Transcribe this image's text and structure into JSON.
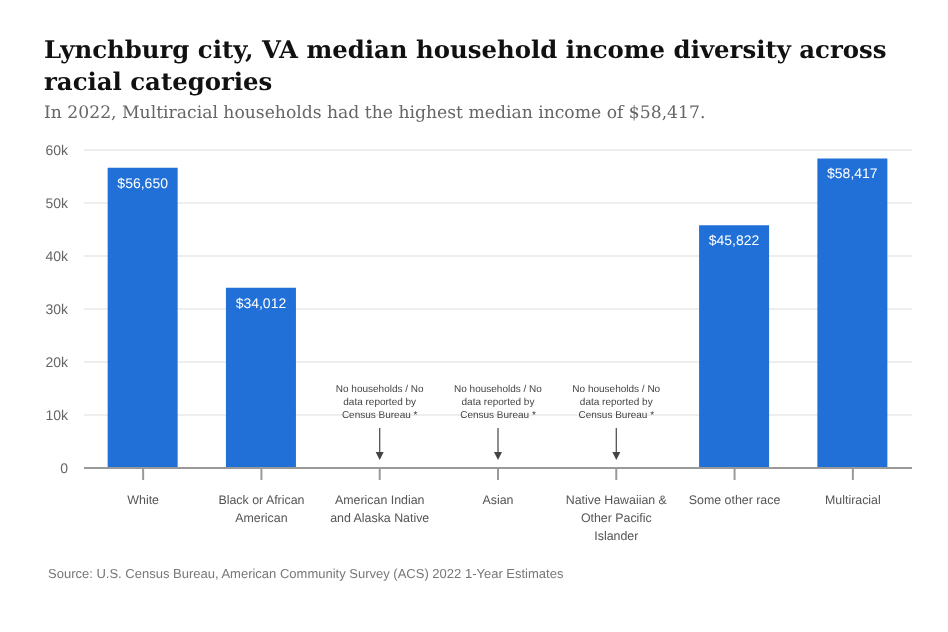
{
  "chart_data": {
    "type": "bar",
    "title": "Lynchburg city, VA median household income diversity across racial categories",
    "subtitle": "In 2022, Multiracial households had the highest median income of $58,417.",
    "categories": [
      "White",
      "Black or African American",
      "American Indian and Alaska Native",
      "Asian",
      "Native Hawaiian & Other Pacific Islander",
      "Some other race",
      "Multiracial"
    ],
    "values": [
      56650,
      34012,
      null,
      null,
      null,
      45822,
      58417
    ],
    "value_labels": [
      "$56,650",
      "$34,012",
      null,
      null,
      null,
      "$45,822",
      "$58,417"
    ],
    "color": "#2170d8",
    "ylim": [
      0,
      60000
    ],
    "yticks": [
      0,
      {
        "value": 10000,
        "label": "10k"
      },
      {
        "value": 20000,
        "label": "20k"
      },
      {
        "value": 30000,
        "label": "30k"
      },
      {
        "value": 40000,
        "label": "40k"
      },
      {
        "value": 50000,
        "label": "50k"
      },
      {
        "value": 60000,
        "label": "60k"
      }
    ],
    "grid": "y",
    "annotations": [
      "No households / No data reported by Census Bureau *",
      "No households / No data reported by Census Bureau *",
      "No households / No data reported by Census Bureau *",
      "Source: U.S. Census Bureau, American Community Survey (ACS) 2022 1-Year Estimates"
    ]
  }
}
